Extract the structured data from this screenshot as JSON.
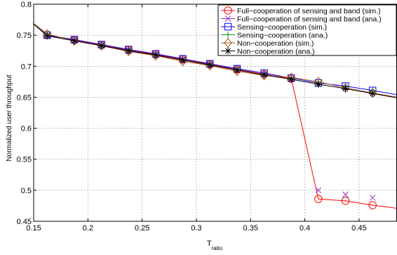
{
  "chart_data": {
    "type": "line",
    "xlabel": "T",
    "xlabel_sub": "ratio",
    "ylabel": "Normalized user throughput",
    "xlim": [
      0.15,
      0.485
    ],
    "ylim": [
      0.45,
      0.8
    ],
    "xticks": [
      "0.15",
      "0.2",
      "0.25",
      "0.3",
      "0.35",
      "0.4",
      "0.45"
    ],
    "yticks": [
      "0.45",
      "0.5",
      "0.55",
      "0.6",
      "0.65",
      "0.7",
      "0.75",
      "0.8"
    ],
    "grid": true,
    "legend_position": "top-right",
    "series": [
      {
        "name": "Full−cooperation of sensing and band (sim.)",
        "color": "#ff0000",
        "marker": "circle",
        "x": [
          0.15,
          0.1625,
          0.1875,
          0.2125,
          0.2375,
          0.2625,
          0.2875,
          0.3125,
          0.3375,
          0.3625,
          0.3875,
          0.4125,
          0.4375,
          0.4625,
          0.485
        ],
        "y": [
          0.768,
          0.75,
          0.742,
          0.734,
          0.726,
          0.719,
          0.711,
          0.703,
          0.695,
          0.687,
          0.68,
          0.486,
          0.483,
          0.476,
          0.471
        ],
        "marker_x": [
          0.1625,
          0.1875,
          0.2125,
          0.2375,
          0.2625,
          0.2875,
          0.3125,
          0.3375,
          0.3625,
          0.3875,
          0.4125,
          0.4375,
          0.4625
        ],
        "marker_y": [
          0.75,
          0.742,
          0.734,
          0.726,
          0.719,
          0.711,
          0.703,
          0.695,
          0.687,
          0.68,
          0.486,
          0.483,
          0.476
        ]
      },
      {
        "name": "Full−cooperation of sensing and band (ana.)",
        "color": "#9933cc",
        "marker": "x",
        "x": [],
        "y": [],
        "marker_x": [
          0.1625,
          0.1875,
          0.2125,
          0.2375,
          0.2625,
          0.2875,
          0.3125,
          0.3375,
          0.3625,
          0.3875,
          0.4125,
          0.4375,
          0.4625
        ],
        "marker_y": [
          0.75,
          0.742,
          0.734,
          0.726,
          0.719,
          0.711,
          0.703,
          0.695,
          0.687,
          0.68,
          0.5,
          0.493,
          0.488
        ]
      },
      {
        "name": "Sensing−cooperation (sim.)",
        "color": "#0000ff",
        "marker": "square",
        "x": [
          0.15,
          0.1625,
          0.1875,
          0.2125,
          0.2375,
          0.2625,
          0.2875,
          0.3125,
          0.3375,
          0.3625,
          0.3875,
          0.4125,
          0.4375,
          0.4625,
          0.485
        ],
        "y": [
          0.768,
          0.75,
          0.743,
          0.735,
          0.727,
          0.72,
          0.712,
          0.704,
          0.696,
          0.689,
          0.681,
          0.673,
          0.668,
          0.661,
          0.654
        ],
        "marker_x": [
          0.1625,
          0.1875,
          0.2125,
          0.2375,
          0.2625,
          0.2875,
          0.3125,
          0.3375,
          0.3625,
          0.3875,
          0.4125,
          0.4375,
          0.4625
        ],
        "marker_y": [
          0.75,
          0.743,
          0.735,
          0.727,
          0.72,
          0.712,
          0.704,
          0.696,
          0.689,
          0.681,
          0.673,
          0.668,
          0.661
        ]
      },
      {
        "name": "Sensing−cooperation (ana.)",
        "color": "#009900",
        "marker": "plus",
        "x": [],
        "y": [],
        "marker_x": [
          0.1625,
          0.1875,
          0.2125,
          0.2375,
          0.2625,
          0.2875,
          0.3125,
          0.3375,
          0.3625,
          0.3875,
          0.4125,
          0.4375,
          0.4625
        ],
        "marker_y": [
          0.75,
          0.742,
          0.734,
          0.726,
          0.719,
          0.711,
          0.703,
          0.695,
          0.687,
          0.68,
          0.672,
          0.667,
          0.66
        ]
      },
      {
        "name": "Non−cooperation (sim.)",
        "color": "#b05a1a",
        "marker": "diamond",
        "x": [
          0.15,
          0.1625,
          0.1875,
          0.2125,
          0.2375,
          0.2625,
          0.2875,
          0.3125,
          0.3375,
          0.3625,
          0.3875,
          0.4125,
          0.4375,
          0.4625,
          0.485
        ],
        "y": [
          0.769,
          0.752,
          0.741,
          0.733,
          0.724,
          0.717,
          0.708,
          0.701,
          0.692,
          0.685,
          0.682,
          0.675,
          0.665,
          0.657,
          0.65
        ],
        "marker_x": [
          0.1625,
          0.1875,
          0.2125,
          0.2375,
          0.2625,
          0.2875,
          0.3125,
          0.3375,
          0.3625,
          0.3875,
          0.4125,
          0.4375,
          0.4625
        ],
        "marker_y": [
          0.752,
          0.741,
          0.733,
          0.724,
          0.717,
          0.708,
          0.701,
          0.692,
          0.685,
          0.682,
          0.675,
          0.665,
          0.657
        ]
      },
      {
        "name": "Non−cooperation (ana.)",
        "color": "#000000",
        "marker": "asterisk",
        "x": [
          0.15,
          0.1625,
          0.1875,
          0.2125,
          0.2375,
          0.2625,
          0.2875,
          0.3125,
          0.3375,
          0.3625,
          0.3875,
          0.4125,
          0.4375,
          0.4625,
          0.485
        ],
        "y": [
          0.768,
          0.749,
          0.741,
          0.733,
          0.725,
          0.718,
          0.71,
          0.702,
          0.694,
          0.686,
          0.679,
          0.671,
          0.664,
          0.656,
          0.649
        ],
        "marker_x": [
          0.1625,
          0.1875,
          0.2125,
          0.2375,
          0.2625,
          0.2875,
          0.3125,
          0.3375,
          0.3625,
          0.3875,
          0.4125,
          0.4375,
          0.4625
        ],
        "marker_y": [
          0.749,
          0.741,
          0.733,
          0.725,
          0.718,
          0.71,
          0.702,
          0.694,
          0.686,
          0.679,
          0.671,
          0.664,
          0.656
        ]
      }
    ]
  }
}
